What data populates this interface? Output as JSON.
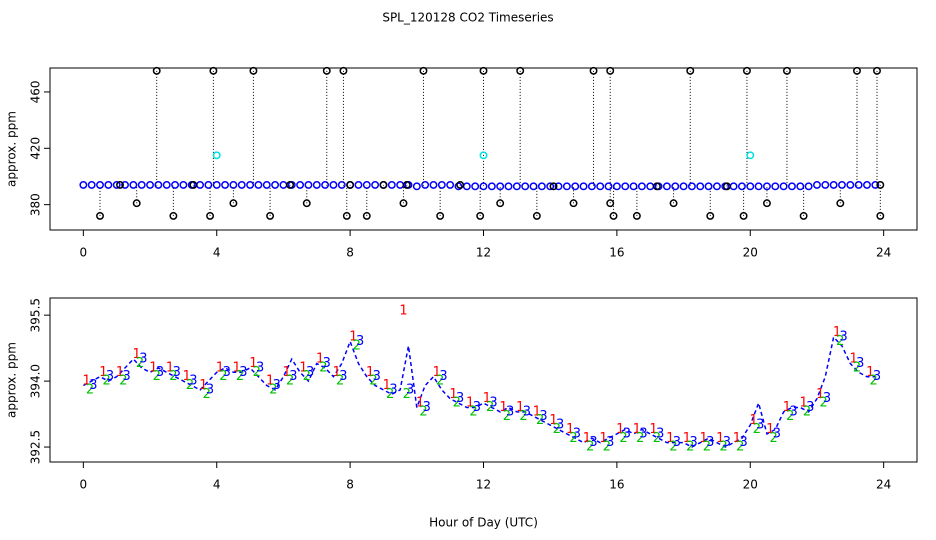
{
  "title": "SPL_120128  CO2 Timeseries",
  "chart_data": [
    {
      "type": "scatter",
      "ylabel": "approx. ppm",
      "xlim": [
        -1,
        25
      ],
      "ylim": [
        362,
        477
      ],
      "xticks": [
        0,
        4,
        8,
        12,
        16,
        20,
        24
      ],
      "yticks": [
        380,
        420,
        460
      ],
      "x": [
        0,
        0.25,
        0.5,
        0.75,
        1,
        1.25,
        1.5,
        1.75,
        2,
        2.25,
        2.5,
        2.75,
        3,
        3.25,
        3.5,
        3.75,
        4,
        4.25,
        4.5,
        4.75,
        5,
        5.25,
        5.5,
        5.75,
        6,
        6.25,
        6.5,
        6.75,
        7,
        7.25,
        7.5,
        7.75,
        8,
        8.25,
        8.5,
        8.75,
        9,
        9.25,
        9.5,
        9.75,
        10,
        10.25,
        10.5,
        10.75,
        11,
        11.25,
        11.5,
        11.75,
        12,
        12.25,
        12.5,
        12.75,
        13,
        13.25,
        13.5,
        13.75,
        14,
        14.25,
        14.5,
        14.75,
        15,
        15.25,
        15.5,
        15.75,
        16,
        16.25,
        16.5,
        16.75,
        17,
        17.25,
        17.5,
        17.75,
        18,
        18.25,
        18.5,
        18.75,
        19,
        19.25,
        19.5,
        19.75,
        20,
        20.25,
        20.5,
        20.75,
        21,
        21.25,
        21.5,
        21.75,
        22,
        22.25,
        22.5,
        22.75,
        23,
        23.25,
        23.5,
        23.75
      ],
      "series": [
        {
          "color": "#0000ff",
          "values": [
            394,
            394,
            394,
            394,
            394,
            394,
            394,
            394,
            394,
            394,
            394,
            394,
            394,
            394,
            394,
            394,
            394,
            394,
            394,
            394,
            394,
            394,
            394,
            394,
            394,
            394,
            394,
            394,
            394,
            394,
            394,
            394,
            394,
            394,
            394,
            394,
            394,
            394,
            394,
            394,
            393,
            394,
            394,
            394,
            394,
            393,
            393,
            393,
            393,
            393,
            393,
            393,
            393,
            393,
            393,
            393,
            393,
            393,
            393,
            393,
            393,
            393,
            393,
            393,
            393,
            393,
            393,
            393,
            393,
            393,
            393,
            393,
            393,
            393,
            393,
            393,
            393,
            393,
            393,
            393,
            393,
            393,
            393,
            393,
            393,
            393,
            393,
            393,
            394,
            394,
            394,
            394,
            394,
            394,
            394,
            394
          ]
        },
        {
          "color": "#000000",
          "drop_lines": true,
          "x": [
            2.2,
            3.9,
            5.1,
            7.3,
            7.8,
            10.2,
            12.0,
            13.1,
            15.3,
            15.8,
            18.2,
            19.9,
            21.1,
            23.2,
            23.8,
            0.5,
            1.6,
            2.7,
            3.8,
            4.5,
            5.6,
            6.7,
            7.9,
            8.5,
            9.6,
            10.7,
            11.9,
            12.5,
            13.6,
            14.7,
            15.8,
            15.9,
            16.6,
            17.7,
            18.8,
            19.8,
            20.5,
            21.6,
            22.7,
            23.9,
            1.1,
            3.3,
            6.2,
            8.0,
            9.0,
            9.7,
            11.3,
            14.1,
            17.2,
            19.3,
            23.9
          ],
          "values": [
            475,
            475,
            475,
            475,
            475,
            475,
            475,
            475,
            475,
            475,
            475,
            475,
            475,
            475,
            475,
            372,
            381,
            372,
            372,
            381,
            372,
            381,
            372,
            372,
            381,
            372,
            372,
            381,
            372,
            381,
            381,
            372,
            372,
            381,
            372,
            372,
            381,
            372,
            381,
            372,
            394,
            394,
            394,
            394,
            394,
            394,
            394,
            393,
            393,
            393,
            394
          ]
        },
        {
          "color": "#00e0e0",
          "x": [
            4,
            12,
            20
          ],
          "values": [
            415,
            415,
            415
          ]
        }
      ]
    },
    {
      "type": "line",
      "ylabel": "approx. ppm",
      "xlabel": "Hour of Day (UTC)",
      "xlim": [
        -1,
        25
      ],
      "ylim": [
        392.16,
        395.89
      ],
      "xticks": [
        0,
        4,
        8,
        12,
        16,
        20,
        24
      ],
      "yticks": [
        392.5,
        {
          "value": 394,
          "label": "394.0"
        },
        395.5
      ],
      "x": [
        0,
        0.25,
        0.5,
        0.75,
        1,
        1.25,
        1.5,
        1.75,
        2,
        2.25,
        2.5,
        2.75,
        3,
        3.25,
        3.5,
        3.75,
        4,
        4.25,
        4.5,
        4.75,
        5,
        5.25,
        5.5,
        5.75,
        6,
        6.25,
        6.5,
        6.75,
        7,
        7.25,
        7.5,
        7.75,
        8,
        8.25,
        8.5,
        8.75,
        9,
        9.25,
        9.5,
        9.75,
        10,
        10.25,
        10.5,
        10.75,
        11,
        11.25,
        11.5,
        11.75,
        12,
        12.25,
        12.5,
        12.75,
        13,
        13.25,
        13.5,
        13.75,
        14,
        14.25,
        14.5,
        14.75,
        15,
        15.25,
        15.5,
        15.75,
        16,
        16.25,
        16.5,
        16.75,
        17,
        17.25,
        17.5,
        17.75,
        18,
        18.25,
        18.5,
        18.75,
        19,
        19.25,
        19.5,
        19.75,
        20,
        20.25,
        20.5,
        20.75,
        21,
        21.25,
        21.5,
        21.75,
        22,
        22.25,
        22.5,
        22.75,
        23,
        23.25,
        23.5,
        23.75
      ],
      "series": [
        {
          "color": "#0000ff",
          "values": [
            393.9,
            394.0,
            394.1,
            394.0,
            394.1,
            394.3,
            394.5,
            394.3,
            394.2,
            394.3,
            394.2,
            394.1,
            394.0,
            393.9,
            393.8,
            394.0,
            394.2,
            394.3,
            394.2,
            394.2,
            394.3,
            394.1,
            393.9,
            393.8,
            394.1,
            394.5,
            394.2,
            394.0,
            394.4,
            394.3,
            394.1,
            394.4,
            394.9,
            394.4,
            394.1,
            393.9,
            393.8,
            393.7,
            393.8,
            394.8,
            393.4,
            393.9,
            394.1,
            393.8,
            393.6,
            393.5,
            393.4,
            393.4,
            393.5,
            393.4,
            393.3,
            393.4,
            393.3,
            393.3,
            393.2,
            393.1,
            393.0,
            392.9,
            392.8,
            392.7,
            392.6,
            392.7,
            392.6,
            392.7,
            392.8,
            392.9,
            392.8,
            392.9,
            392.8,
            392.7,
            392.6,
            392.6,
            392.6,
            392.5,
            392.6,
            392.7,
            392.6,
            392.5,
            392.6,
            392.7,
            393.0,
            393.5,
            392.8,
            392.9,
            393.3,
            393.4,
            393.4,
            393.3,
            393.6,
            394.1,
            395.0,
            394.8,
            394.4,
            394.2,
            394.1,
            394.1
          ]
        },
        {
          "color": "#ff0000",
          "marker": "1",
          "x": [
            0.1,
            0.6,
            1.1,
            1.6,
            2.1,
            2.6,
            3.1,
            3.6,
            4.1,
            4.6,
            5.1,
            5.6,
            6.1,
            6.6,
            7.1,
            7.6,
            8.1,
            8.6,
            9.1,
            9.6,
            10.1,
            10.6,
            11.1,
            11.6,
            12.1,
            12.6,
            13.1,
            13.6,
            14.1,
            14.6,
            15.1,
            15.6,
            16.1,
            16.6,
            17.1,
            17.6,
            18.1,
            18.6,
            19.1,
            19.6,
            20.1,
            20.6,
            21.1,
            21.6,
            22.1,
            22.6,
            23.1,
            23.6
          ],
          "values": [
            394.0,
            394.2,
            394.2,
            394.6,
            394.3,
            394.3,
            394.1,
            393.9,
            394.3,
            394.3,
            394.4,
            394.0,
            394.2,
            394.3,
            394.5,
            394.2,
            395.0,
            394.2,
            393.9,
            395.6,
            393.5,
            394.2,
            393.7,
            393.5,
            393.6,
            393.4,
            393.4,
            393.3,
            393.1,
            392.9,
            392.7,
            392.7,
            392.9,
            392.9,
            392.9,
            392.7,
            392.7,
            392.7,
            392.7,
            392.7,
            393.1,
            392.9,
            393.4,
            393.5,
            393.7,
            395.1,
            394.5,
            394.2
          ]
        },
        {
          "color": "#00c000",
          "marker": "2",
          "x": [
            0.2,
            0.7,
            1.2,
            1.7,
            2.2,
            2.7,
            3.2,
            3.7,
            4.2,
            4.7,
            5.2,
            5.7,
            6.2,
            6.7,
            7.2,
            7.7,
            8.2,
            8.7,
            9.2,
            9.7,
            10.2,
            10.7,
            11.2,
            11.7,
            12.2,
            12.7,
            13.2,
            13.7,
            14.2,
            14.7,
            15.2,
            15.7,
            16.2,
            16.7,
            17.2,
            17.7,
            18.2,
            18.7,
            19.2,
            19.7,
            20.2,
            20.7,
            21.2,
            21.7,
            22.2,
            22.7,
            23.2,
            23.7
          ],
          "values": [
            393.8,
            394.0,
            394.0,
            394.4,
            394.1,
            394.1,
            393.9,
            393.7,
            394.1,
            394.1,
            394.2,
            393.8,
            394.0,
            394.1,
            394.3,
            394.0,
            394.8,
            394.0,
            393.7,
            393.7,
            393.3,
            394.0,
            393.5,
            393.3,
            393.4,
            393.2,
            393.2,
            393.1,
            392.9,
            392.7,
            392.5,
            392.5,
            392.7,
            392.7,
            392.7,
            392.5,
            392.5,
            392.5,
            392.5,
            392.5,
            392.9,
            392.7,
            393.2,
            393.3,
            393.5,
            394.9,
            394.3,
            394.0
          ]
        },
        {
          "color": "#0000ff",
          "marker": "3",
          "x": [
            0.3,
            0.8,
            1.3,
            1.8,
            2.3,
            2.8,
            3.3,
            3.8,
            4.3,
            4.8,
            5.3,
            5.8,
            6.3,
            6.8,
            7.3,
            7.8,
            8.3,
            8.8,
            9.3,
            9.8,
            10.3,
            10.8,
            11.3,
            11.8,
            12.3,
            12.8,
            13.3,
            13.8,
            14.3,
            14.8,
            15.3,
            15.8,
            16.3,
            16.8,
            17.3,
            17.8,
            18.3,
            18.8,
            19.3,
            19.8,
            20.3,
            20.8,
            21.3,
            21.8,
            22.3,
            22.8,
            23.3,
            23.8
          ],
          "values": [
            393.9,
            394.1,
            394.1,
            394.5,
            394.2,
            394.2,
            394.0,
            393.8,
            394.2,
            394.2,
            394.3,
            393.9,
            394.1,
            394.2,
            394.4,
            394.1,
            394.9,
            394.1,
            393.8,
            393.8,
            393.4,
            394.1,
            393.6,
            393.4,
            393.5,
            393.3,
            393.3,
            393.2,
            393.0,
            392.8,
            392.6,
            392.6,
            392.8,
            392.8,
            392.8,
            392.6,
            392.6,
            392.6,
            392.6,
            392.6,
            393.0,
            392.8,
            393.3,
            393.4,
            393.6,
            395.0,
            394.4,
            394.1
          ]
        }
      ]
    }
  ]
}
